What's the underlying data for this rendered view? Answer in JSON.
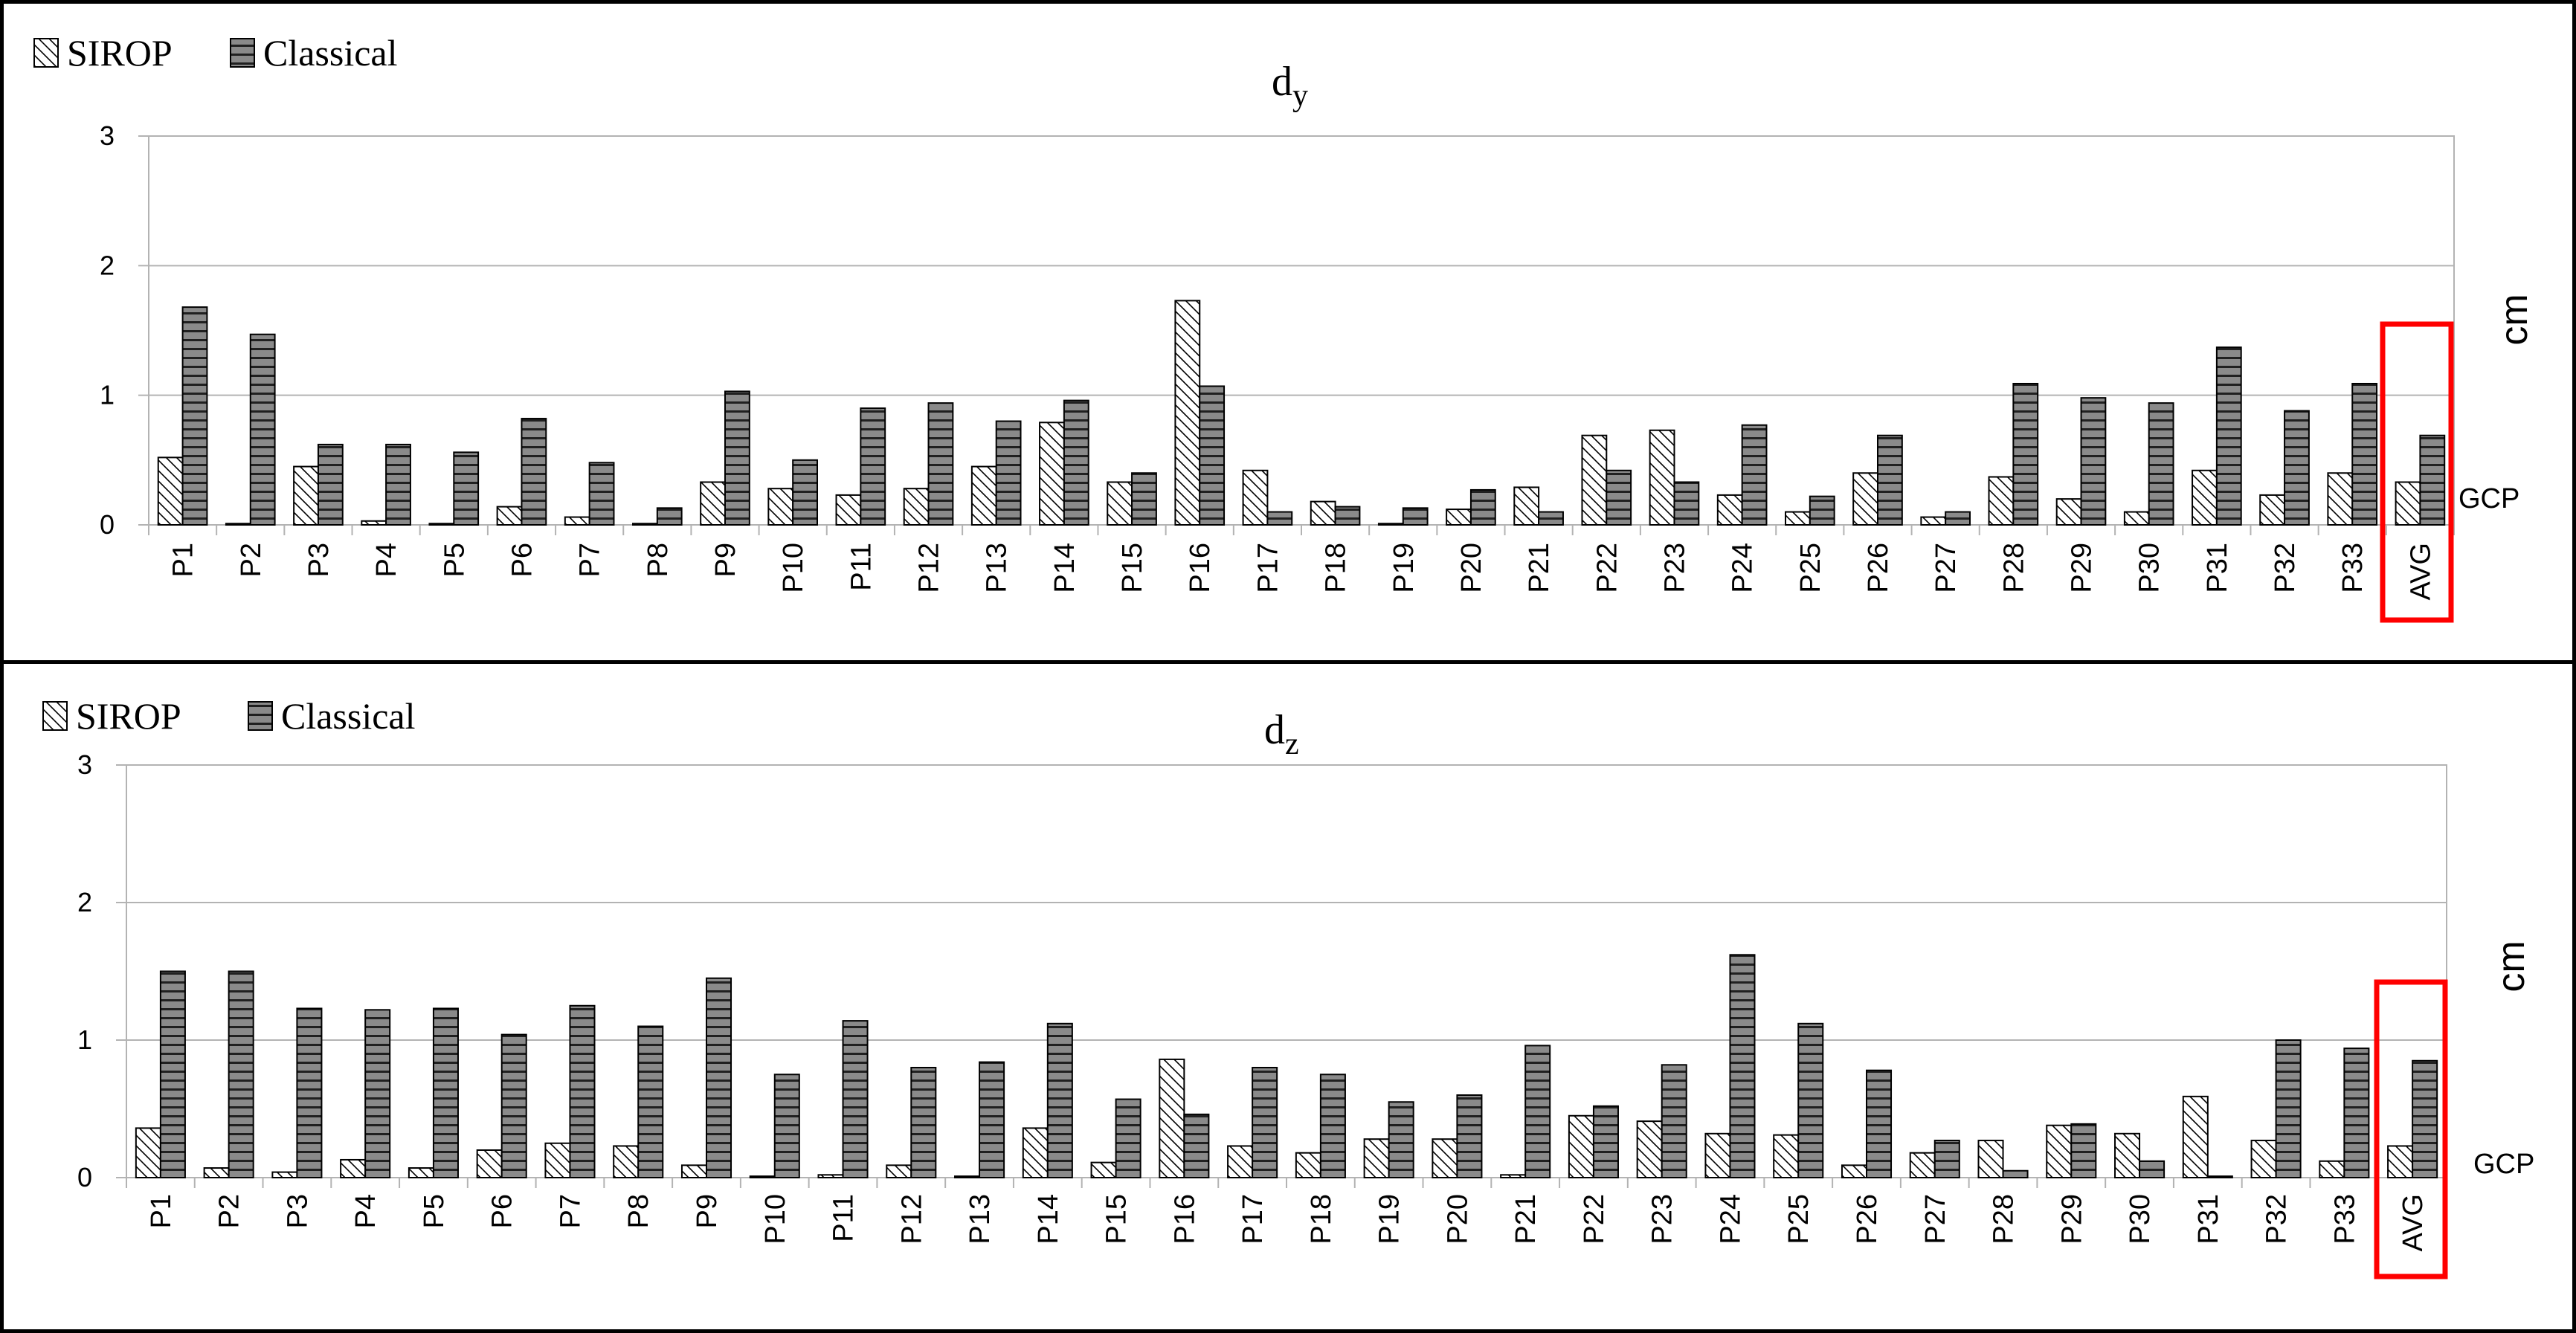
{
  "chart_data": [
    {
      "type": "bar",
      "title": "d",
      "title_subscript": "y",
      "unit_label": "cm",
      "side_label": "GCP",
      "legend": [
        {
          "name": "SIROP",
          "pattern": "diagonal-hatch"
        },
        {
          "name": "Classical",
          "pattern": "horizontal-stripes"
        }
      ],
      "legend_placement": "top-left",
      "ylim": [
        0,
        3
      ],
      "yticks": [
        "0",
        "1",
        "2",
        "3"
      ],
      "grid": true,
      "highlight_category": "AVG",
      "highlight_color": "#ff0000",
      "categories": [
        "P1",
        "P2",
        "P3",
        "P4",
        "P5",
        "P6",
        "P7",
        "P8",
        "P9",
        "P10",
        "P11",
        "P12",
        "P13",
        "P14",
        "P15",
        "P16",
        "P17",
        "P18",
        "P19",
        "P20",
        "P21",
        "P22",
        "P23",
        "P24",
        "P25",
        "P26",
        "P27",
        "P28",
        "P29",
        "P30",
        "P31",
        "P32",
        "P33",
        "AVG"
      ],
      "series": [
        {
          "name": "SIROP",
          "values": [
            0.52,
            0.01,
            0.45,
            0.03,
            0.01,
            0.14,
            0.06,
            0.01,
            0.33,
            0.28,
            0.23,
            0.28,
            0.45,
            0.79,
            0.33,
            1.73,
            0.42,
            0.18,
            0.01,
            0.12,
            0.29,
            0.69,
            0.73,
            0.23,
            0.1,
            0.4,
            0.06,
            0.37,
            0.2,
            0.1,
            0.42,
            0.23,
            0.4,
            0.33
          ]
        },
        {
          "name": "Classical",
          "values": [
            1.68,
            1.47,
            0.62,
            0.62,
            0.56,
            0.82,
            0.48,
            0.13,
            1.03,
            0.5,
            0.9,
            0.94,
            0.8,
            0.96,
            0.4,
            1.07,
            0.1,
            0.14,
            0.13,
            0.27,
            0.1,
            0.42,
            0.33,
            0.77,
            0.22,
            0.69,
            0.1,
            1.09,
            0.98,
            0.94,
            1.37,
            0.88,
            1.09,
            0.69
          ]
        }
      ]
    },
    {
      "type": "bar",
      "title": "d",
      "title_subscript": "z",
      "unit_label": "cm",
      "side_label": "GCP",
      "legend": [
        {
          "name": "SIROP",
          "pattern": "diagonal-hatch"
        },
        {
          "name": "Classical",
          "pattern": "horizontal-stripes"
        }
      ],
      "legend_placement": "top-left",
      "ylim": [
        0,
        3
      ],
      "yticks": [
        "0",
        "1",
        "2",
        "3"
      ],
      "grid": true,
      "highlight_category": "AVG",
      "highlight_color": "#ff0000",
      "categories": [
        "P1",
        "P2",
        "P3",
        "P4",
        "P5",
        "P6",
        "P7",
        "P8",
        "P9",
        "P10",
        "P11",
        "P12",
        "P13",
        "P14",
        "P15",
        "P16",
        "P17",
        "P18",
        "P19",
        "P20",
        "P21",
        "P22",
        "P23",
        "P24",
        "P25",
        "P26",
        "P27",
        "P28",
        "P29",
        "P30",
        "P31",
        "P32",
        "P33",
        "AVG"
      ],
      "series": [
        {
          "name": "SIROP",
          "values": [
            0.36,
            0.07,
            0.04,
            0.13,
            0.07,
            0.2,
            0.25,
            0.23,
            0.09,
            0.01,
            0.02,
            0.09,
            0.01,
            0.36,
            0.11,
            0.86,
            0.23,
            0.18,
            0.28,
            0.28,
            0.02,
            0.45,
            0.41,
            0.32,
            0.31,
            0.09,
            0.18,
            0.27,
            0.38,
            0.32,
            0.59,
            0.27,
            0.12,
            0.23
          ]
        },
        {
          "name": "Classical",
          "values": [
            1.5,
            1.5,
            1.23,
            1.22,
            1.23,
            1.04,
            1.25,
            1.1,
            1.45,
            0.75,
            1.14,
            0.8,
            0.84,
            1.12,
            0.57,
            0.46,
            0.8,
            0.75,
            0.55,
            0.6,
            0.96,
            0.52,
            0.82,
            1.62,
            1.12,
            0.78,
            0.27,
            0.05,
            0.39,
            0.12,
            0.01,
            1.0,
            0.94,
            0.85
          ]
        }
      ]
    }
  ]
}
